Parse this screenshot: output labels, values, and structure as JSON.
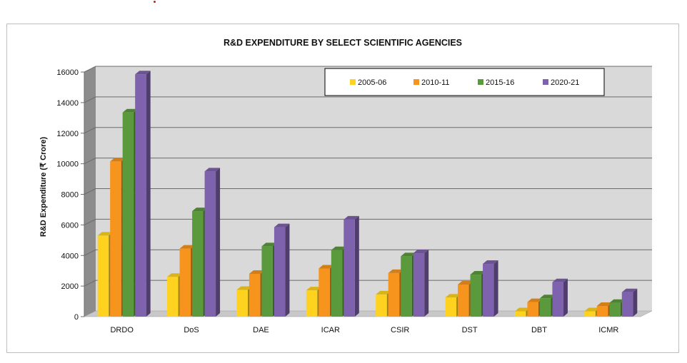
{
  "chart_data": {
    "type": "bar",
    "title": "R&D EXPENDITURE BY SELECT SCIENTIFIC AGENCIES",
    "xlabel": "",
    "ylabel": "R&D Expenditure (₹ Crore)",
    "ylim": [
      0,
      16000
    ],
    "yticks": [
      0,
      2000,
      4000,
      6000,
      8000,
      10000,
      12000,
      14000,
      16000
    ],
    "grid": true,
    "legend_position": "top-right",
    "categories": [
      "DRDO",
      "DoS",
      "DAE",
      "ICAR",
      "CSIR",
      "DST",
      "DBT",
      "ICMR"
    ],
    "series": [
      {
        "name": "2005-06",
        "color": "#ffd21f",
        "values": [
          5300,
          2600,
          1750,
          1720,
          1450,
          1250,
          350,
          350
        ]
      },
      {
        "name": "2010-11",
        "color": "#f7941d",
        "values": [
          10150,
          4450,
          2800,
          3150,
          2850,
          2100,
          950,
          700
        ]
      },
      {
        "name": "2015-16",
        "color": "#5a9a3c",
        "values": [
          13350,
          6900,
          4600,
          4350,
          3950,
          2750,
          1200,
          900
        ]
      },
      {
        "name": "2020-21",
        "color": "#7f62ad",
        "values": [
          15850,
          9500,
          5850,
          6350,
          4150,
          3450,
          2250,
          1600
        ]
      }
    ]
  }
}
